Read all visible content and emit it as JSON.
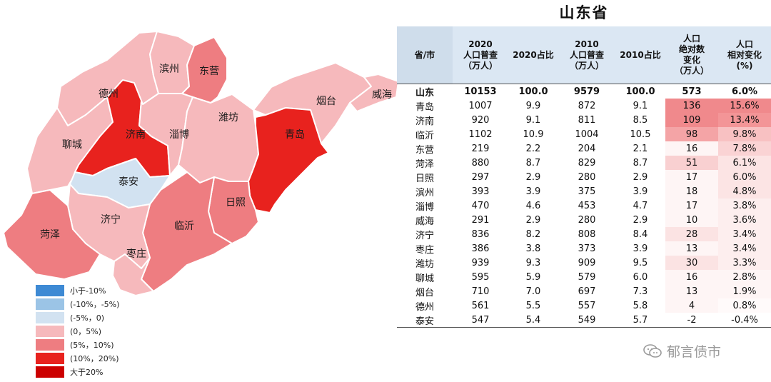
{
  "title": "山东省",
  "colors": {
    "lt_-10": "#3e8ad4",
    "-10_-5": "#9bc4e6",
    "-5_0": "#d2e2f1",
    "0_5": "#f6b9bc",
    "5_10": "#ee7d81",
    "10_20": "#e8221e",
    "gt_20": "#cc0000"
  },
  "legend": [
    {
      "label": "小于-10%",
      "color": "#3e8ad4"
    },
    {
      "label": "(-10%，-5%)",
      "color": "#9bc4e6"
    },
    {
      "label": "(-5%，0)",
      "color": "#d2e2f1"
    },
    {
      "label": "(0，5%)",
      "color": "#f6b9bc"
    },
    {
      "label": "(5%，10%)",
      "color": "#ee7d81"
    },
    {
      "label": "(10%，20%)",
      "color": "#e8221e"
    },
    {
      "label": "大于20%",
      "color": "#cc0000"
    }
  ],
  "map_labels": {
    "binzhou": "滨州",
    "dongying": "东营",
    "dezhou": "德州",
    "yantai": "烟台",
    "weihai": "威海",
    "jinan": "济南",
    "zibo": "淄博",
    "weifang": "潍坊",
    "qingdao": "青岛",
    "liaocheng": "聊城",
    "taian": "泰安",
    "jining": "济宁",
    "rizhao": "日照",
    "linyi": "临沂",
    "heze": "菏泽",
    "zaozhuang": "枣庄"
  },
  "table": {
    "headers": [
      {
        "lines": [
          "省/市"
        ]
      },
      {
        "lines": [
          "2020",
          "人口普查",
          "（万人）"
        ]
      },
      {
        "lines": [
          "2020占比"
        ]
      },
      {
        "lines": [
          "2010",
          "人口普查",
          "（万人）"
        ]
      },
      {
        "lines": [
          "2010占比"
        ]
      },
      {
        "lines": [
          "人口",
          "绝对数",
          "变化",
          "（万人）"
        ]
      },
      {
        "lines": [
          "人口",
          "相对变化",
          "(%)"
        ]
      }
    ],
    "rows": [
      {
        "name": "山东",
        "p2020": "10153",
        "s2020": "100.0",
        "p2010": "9579",
        "s2010": "100.0",
        "abs": "573",
        "rel": "6.0%"
      },
      {
        "name": "青岛",
        "p2020": "1007",
        "s2020": "9.9",
        "p2010": "872",
        "s2010": "9.1",
        "abs": "136",
        "rel": "15.6%"
      },
      {
        "name": "济南",
        "p2020": "920",
        "s2020": "9.1",
        "p2010": "811",
        "s2010": "8.5",
        "abs": "109",
        "rel": "13.4%"
      },
      {
        "name": "临沂",
        "p2020": "1102",
        "s2020": "10.9",
        "p2010": "1004",
        "s2010": "10.5",
        "abs": "98",
        "rel": "9.8%"
      },
      {
        "name": "东营",
        "p2020": "219",
        "s2020": "2.2",
        "p2010": "204",
        "s2010": "2.1",
        "abs": "16",
        "rel": "7.8%"
      },
      {
        "name": "菏泽",
        "p2020": "880",
        "s2020": "8.7",
        "p2010": "829",
        "s2010": "8.7",
        "abs": "51",
        "rel": "6.1%"
      },
      {
        "name": "日照",
        "p2020": "297",
        "s2020": "2.9",
        "p2010": "280",
        "s2010": "2.9",
        "abs": "17",
        "rel": "6.0%"
      },
      {
        "name": "滨州",
        "p2020": "393",
        "s2020": "3.9",
        "p2010": "375",
        "s2010": "3.9",
        "abs": "18",
        "rel": "4.8%"
      },
      {
        "name": "淄博",
        "p2020": "470",
        "s2020": "4.6",
        "p2010": "453",
        "s2010": "4.7",
        "abs": "17",
        "rel": "3.8%"
      },
      {
        "name": "威海",
        "p2020": "291",
        "s2020": "2.9",
        "p2010": "280",
        "s2010": "2.9",
        "abs": "10",
        "rel": "3.6%"
      },
      {
        "name": "济宁",
        "p2020": "836",
        "s2020": "8.2",
        "p2010": "808",
        "s2010": "8.4",
        "abs": "28",
        "rel": "3.4%"
      },
      {
        "name": "枣庄",
        "p2020": "386",
        "s2020": "3.8",
        "p2010": "373",
        "s2010": "3.9",
        "abs": "13",
        "rel": "3.4%"
      },
      {
        "name": "潍坊",
        "p2020": "939",
        "s2020": "9.3",
        "p2010": "909",
        "s2010": "9.5",
        "abs": "30",
        "rel": "3.3%"
      },
      {
        "name": "聊城",
        "p2020": "595",
        "s2020": "5.9",
        "p2010": "579",
        "s2010": "6.0",
        "abs": "16",
        "rel": "2.8%"
      },
      {
        "name": "烟台",
        "p2020": "710",
        "s2020": "7.0",
        "p2010": "697",
        "s2010": "7.3",
        "abs": "13",
        "rel": "1.9%"
      },
      {
        "name": "德州",
        "p2020": "561",
        "s2020": "5.5",
        "p2010": "557",
        "s2010": "5.8",
        "abs": "4",
        "rel": "0.8%"
      },
      {
        "name": "泰安",
        "p2020": "547",
        "s2020": "5.4",
        "p2010": "549",
        "s2010": "5.7",
        "abs": "-2",
        "rel": "-0.4%"
      }
    ]
  },
  "watermark": "郁言债市"
}
